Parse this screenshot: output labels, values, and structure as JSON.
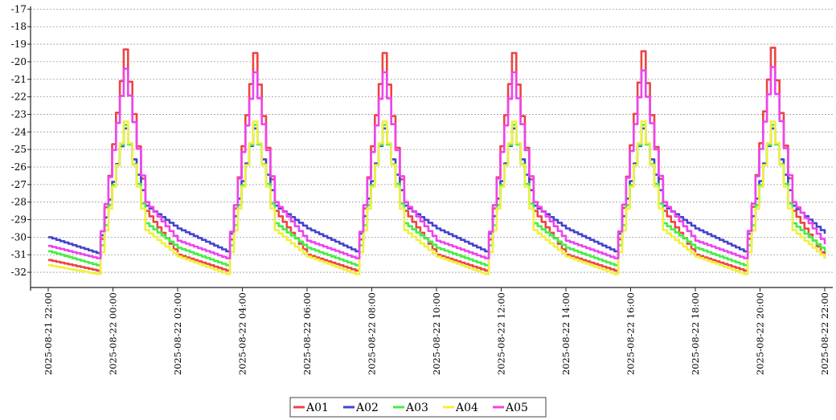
{
  "chart_data": {
    "type": "line",
    "title": "",
    "xlabel": "",
    "ylabel": "",
    "ylim": [
      -32.5,
      -16.8
    ],
    "yticks": [
      -17,
      -18,
      -19,
      -20,
      -21,
      -22,
      -23,
      -24,
      -25,
      -26,
      -27,
      -28,
      -29,
      -30,
      -31,
      -32
    ],
    "xlim": [
      "2025-08-21 22:00",
      "2025-08-22 22:00"
    ],
    "xticks": [
      "2025-08-21 22:00",
      "2025-08-22 00:00",
      "2025-08-22 02:00",
      "2025-08-22 04:00",
      "2025-08-22 06:00",
      "2025-08-22 08:00",
      "2025-08-22 10:00",
      "2025-08-22 12:00",
      "2025-08-22 14:00",
      "2025-08-22 16:00",
      "2025-08-22 18:00",
      "2025-08-22 20:00",
      "2025-08-22 22:00"
    ],
    "grid": "horizontal-dashed",
    "legend_position": "bottom-center",
    "defrost_cycle_peaks": [
      "2025-08-22 00:20",
      "2025-08-22 04:20",
      "2025-08-22 08:20",
      "2025-08-22 12:20",
      "2025-08-22 16:20",
      "2025-08-22 20:20"
    ],
    "series": [
      {
        "name": "A01",
        "color": "#ee4444",
        "points": [
          [
            "2025-08-21 22:00",
            -31.3
          ],
          [
            "2025-08-21 23:30",
            -31.9
          ],
          [
            "2025-08-22 00:20",
            -19.3
          ],
          [
            "2025-08-22 01:00",
            -28.5
          ],
          [
            "2025-08-22 02:00",
            -31.0
          ],
          [
            "2025-08-22 03:30",
            -31.9
          ],
          [
            "2025-08-22 04:20",
            -19.5
          ],
          [
            "2025-08-22 05:00",
            -28.5
          ],
          [
            "2025-08-22 06:00",
            -31.0
          ],
          [
            "2025-08-22 07:30",
            -31.9
          ],
          [
            "2025-08-22 08:20",
            -19.5
          ],
          [
            "2025-08-22 09:00",
            -28.5
          ],
          [
            "2025-08-22 10:00",
            -31.0
          ],
          [
            "2025-08-22 11:30",
            -31.9
          ],
          [
            "2025-08-22 12:20",
            -19.5
          ],
          [
            "2025-08-22 13:00",
            -28.5
          ],
          [
            "2025-08-22 14:00",
            -31.0
          ],
          [
            "2025-08-22 15:30",
            -31.9
          ],
          [
            "2025-08-22 16:20",
            -19.4
          ],
          [
            "2025-08-22 17:00",
            -28.5
          ],
          [
            "2025-08-22 18:00",
            -31.0
          ],
          [
            "2025-08-22 19:30",
            -31.9
          ],
          [
            "2025-08-22 20:20",
            -19.2
          ],
          [
            "2025-08-22 21:00",
            -28.5
          ],
          [
            "2025-08-22 22:00",
            -31.2
          ]
        ]
      },
      {
        "name": "A02",
        "color": "#4444cc",
        "points": [
          [
            "2025-08-21 22:00",
            -30.0
          ],
          [
            "2025-08-21 23:30",
            -30.9
          ],
          [
            "2025-08-22 00:20",
            -23.8
          ],
          [
            "2025-08-22 01:00",
            -28.2
          ],
          [
            "2025-08-22 02:00",
            -29.5
          ],
          [
            "2025-08-22 03:30",
            -30.8
          ],
          [
            "2025-08-22 04:20",
            -23.8
          ],
          [
            "2025-08-22 05:00",
            -28.2
          ],
          [
            "2025-08-22 06:00",
            -29.5
          ],
          [
            "2025-08-22 07:30",
            -30.8
          ],
          [
            "2025-08-22 08:20",
            -23.8
          ],
          [
            "2025-08-22 09:00",
            -28.2
          ],
          [
            "2025-08-22 10:00",
            -29.5
          ],
          [
            "2025-08-22 11:30",
            -30.8
          ],
          [
            "2025-08-22 12:20",
            -23.8
          ],
          [
            "2025-08-22 13:00",
            -28.2
          ],
          [
            "2025-08-22 14:00",
            -29.5
          ],
          [
            "2025-08-22 15:30",
            -30.8
          ],
          [
            "2025-08-22 16:20",
            -23.8
          ],
          [
            "2025-08-22 17:00",
            -28.2
          ],
          [
            "2025-08-22 18:00",
            -29.5
          ],
          [
            "2025-08-22 19:30",
            -30.8
          ],
          [
            "2025-08-22 20:20",
            -23.8
          ],
          [
            "2025-08-22 21:00",
            -28.2
          ],
          [
            "2025-08-22 22:00",
            -29.8
          ]
        ]
      },
      {
        "name": "A03",
        "color": "#44ee44",
        "points": [
          [
            "2025-08-21 22:00",
            -30.8
          ],
          [
            "2025-08-21 23:30",
            -31.6
          ],
          [
            "2025-08-22 00:20",
            -23.6
          ],
          [
            "2025-08-22 01:00",
            -29.2
          ],
          [
            "2025-08-22 02:00",
            -30.6
          ],
          [
            "2025-08-22 03:30",
            -31.6
          ],
          [
            "2025-08-22 04:20",
            -23.6
          ],
          [
            "2025-08-22 05:00",
            -29.2
          ],
          [
            "2025-08-22 06:00",
            -30.6
          ],
          [
            "2025-08-22 07:30",
            -31.6
          ],
          [
            "2025-08-22 08:20",
            -23.6
          ],
          [
            "2025-08-22 09:00",
            -29.2
          ],
          [
            "2025-08-22 10:00",
            -30.6
          ],
          [
            "2025-08-22 11:30",
            -31.6
          ],
          [
            "2025-08-22 12:20",
            -23.6
          ],
          [
            "2025-08-22 13:00",
            -29.2
          ],
          [
            "2025-08-22 14:00",
            -30.6
          ],
          [
            "2025-08-22 15:30",
            -31.6
          ],
          [
            "2025-08-22 16:20",
            -23.6
          ],
          [
            "2025-08-22 17:00",
            -29.2
          ],
          [
            "2025-08-22 18:00",
            -30.6
          ],
          [
            "2025-08-22 19:30",
            -31.6
          ],
          [
            "2025-08-22 20:20",
            -23.6
          ],
          [
            "2025-08-22 21:00",
            -29.2
          ],
          [
            "2025-08-22 22:00",
            -30.8
          ]
        ]
      },
      {
        "name": "A04",
        "color": "#f0f040",
        "points": [
          [
            "2025-08-21 22:00",
            -31.6
          ],
          [
            "2025-08-21 23:30",
            -32.1
          ],
          [
            "2025-08-22 00:20",
            -23.4
          ],
          [
            "2025-08-22 01:00",
            -29.6
          ],
          [
            "2025-08-22 02:00",
            -31.1
          ],
          [
            "2025-08-22 03:30",
            -32.1
          ],
          [
            "2025-08-22 04:20",
            -23.4
          ],
          [
            "2025-08-22 05:00",
            -29.6
          ],
          [
            "2025-08-22 06:00",
            -31.1
          ],
          [
            "2025-08-22 07:30",
            -32.1
          ],
          [
            "2025-08-22 08:20",
            -23.4
          ],
          [
            "2025-08-22 09:00",
            -29.6
          ],
          [
            "2025-08-22 10:00",
            -31.1
          ],
          [
            "2025-08-22 11:30",
            -32.1
          ],
          [
            "2025-08-22 12:20",
            -23.4
          ],
          [
            "2025-08-22 13:00",
            -29.6
          ],
          [
            "2025-08-22 14:00",
            -31.1
          ],
          [
            "2025-08-22 15:30",
            -32.1
          ],
          [
            "2025-08-22 16:20",
            -23.4
          ],
          [
            "2025-08-22 17:00",
            -29.6
          ],
          [
            "2025-08-22 18:00",
            -31.1
          ],
          [
            "2025-08-22 19:30",
            -32.1
          ],
          [
            "2025-08-22 20:20",
            -23.4
          ],
          [
            "2025-08-22 21:00",
            -29.6
          ],
          [
            "2025-08-22 22:00",
            -31.2
          ]
        ]
      },
      {
        "name": "A05",
        "color": "#ee44ee",
        "points": [
          [
            "2025-08-21 22:00",
            -30.5
          ],
          [
            "2025-08-21 23:30",
            -31.2
          ],
          [
            "2025-08-22 00:20",
            -20.4
          ],
          [
            "2025-08-22 01:00",
            -28.0
          ],
          [
            "2025-08-22 02:00",
            -30.2
          ],
          [
            "2025-08-22 03:30",
            -31.2
          ],
          [
            "2025-08-22 04:20",
            -20.6
          ],
          [
            "2025-08-22 05:00",
            -28.0
          ],
          [
            "2025-08-22 06:00",
            -30.2
          ],
          [
            "2025-08-22 07:30",
            -31.2
          ],
          [
            "2025-08-22 08:20",
            -20.6
          ],
          [
            "2025-08-22 09:00",
            -28.0
          ],
          [
            "2025-08-22 10:00",
            -30.2
          ],
          [
            "2025-08-22 11:30",
            -31.2
          ],
          [
            "2025-08-22 12:20",
            -20.6
          ],
          [
            "2025-08-22 13:00",
            -28.0
          ],
          [
            "2025-08-22 14:00",
            -30.2
          ],
          [
            "2025-08-22 15:30",
            -31.2
          ],
          [
            "2025-08-22 16:20",
            -20.5
          ],
          [
            "2025-08-22 17:00",
            -28.0
          ],
          [
            "2025-08-22 18:00",
            -30.2
          ],
          [
            "2025-08-22 19:30",
            -31.2
          ],
          [
            "2025-08-22 20:20",
            -20.3
          ],
          [
            "2025-08-22 21:00",
            -28.0
          ],
          [
            "2025-08-22 22:00",
            -30.4
          ]
        ]
      }
    ]
  }
}
